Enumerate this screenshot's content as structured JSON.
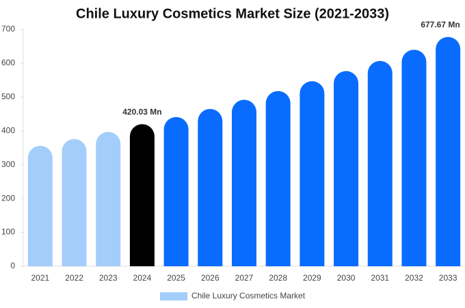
{
  "chart_data": {
    "type": "bar",
    "title": "Chile Luxury Cosmetics Market Size (2021-2033)",
    "categories": [
      "2021",
      "2022",
      "2023",
      "2024",
      "2025",
      "2026",
      "2027",
      "2028",
      "2029",
      "2030",
      "2031",
      "2032",
      "2033"
    ],
    "series": [
      {
        "name": "Chile Luxury Cosmetics Market",
        "color": "#a3cdfb",
        "values": [
          356,
          376,
          397,
          420.03,
          441,
          465,
          492,
          518,
          547,
          577,
          607,
          640,
          677.67
        ],
        "value_labels": [
          null,
          null,
          null,
          "420.03 Mn",
          null,
          null,
          null,
          null,
          null,
          null,
          null,
          null,
          "677.67 Mn"
        ]
      }
    ],
    "bar_colors": [
      "#a3cdfb",
      "#a3cdfb",
      "#a3cdfb",
      "#000000",
      "#0a6cff",
      "#0a6cff",
      "#0a6cff",
      "#0a6cff",
      "#0a6cff",
      "#0a6cff",
      "#0a6cff",
      "#0a6cff",
      "#0a6cff"
    ],
    "ylim": [
      0,
      700
    ],
    "yticks": [
      0,
      100,
      200,
      300,
      400,
      500,
      600,
      700
    ],
    "grid": false
  }
}
